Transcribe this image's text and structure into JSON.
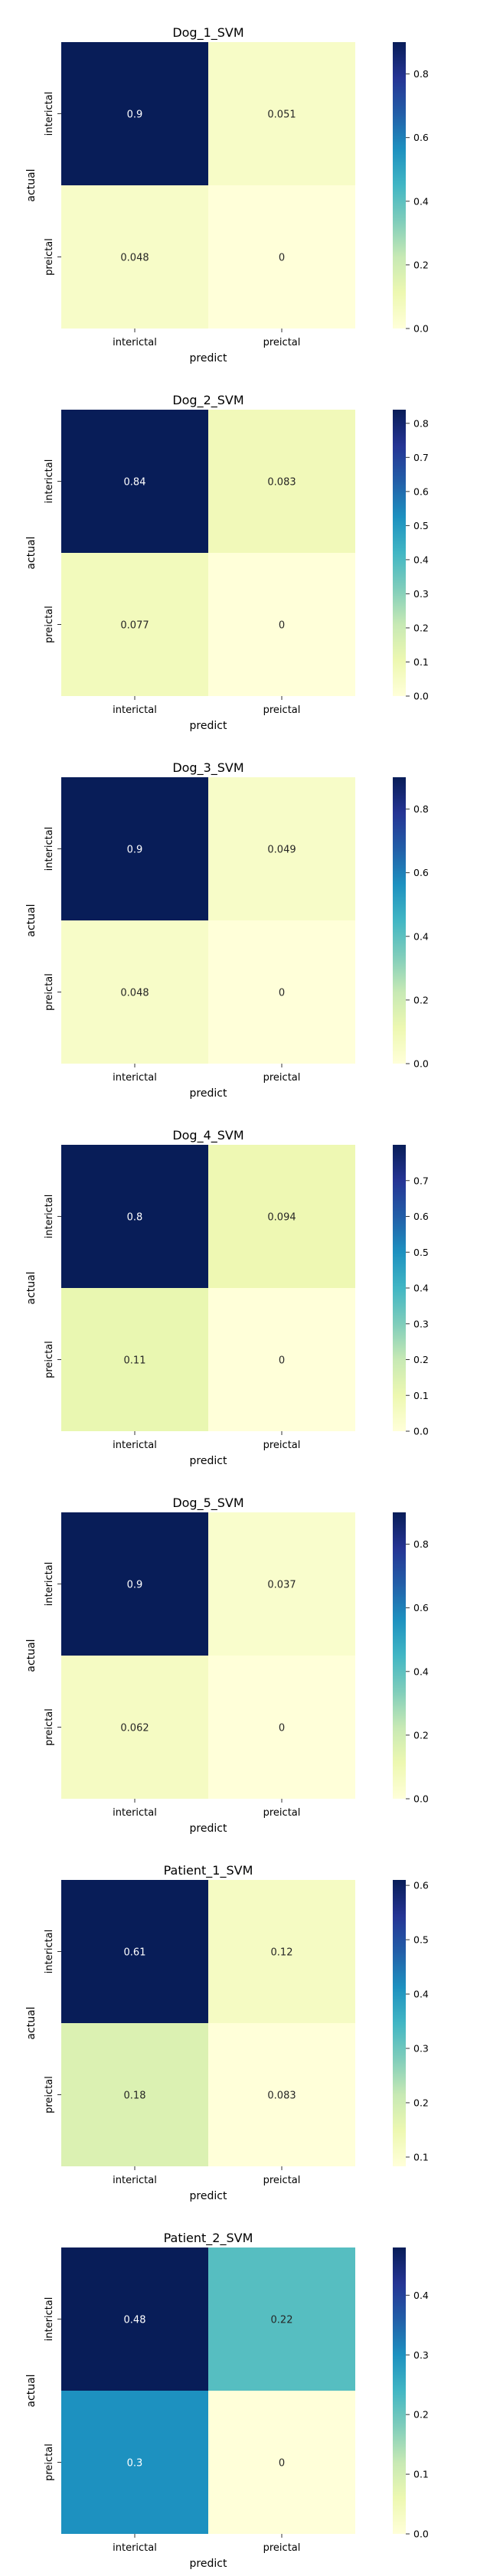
{
  "chart_data": [
    {
      "type": "heatmap",
      "title": "Dog_1_SVM",
      "xlabel": "predict",
      "ylabel": "actual",
      "x_categories": [
        "interictal",
        "preictal"
      ],
      "y_categories": [
        "interictal",
        "preictal"
      ],
      "values": [
        [
          0.9,
          0.051
        ],
        [
          0.048,
          0
        ]
      ],
      "value_labels": [
        [
          "0.9",
          "0.051"
        ],
        [
          "0.048",
          "0"
        ]
      ],
      "colorbar": {
        "min": 0.0,
        "max": 0.9,
        "ticks": [
          "0.0",
          "0.2",
          "0.4",
          "0.6",
          "0.8"
        ]
      }
    },
    {
      "type": "heatmap",
      "title": "Dog_2_SVM",
      "xlabel": "predict",
      "ylabel": "actual",
      "x_categories": [
        "interictal",
        "preictal"
      ],
      "y_categories": [
        "interictal",
        "preictal"
      ],
      "values": [
        [
          0.84,
          0.083
        ],
        [
          0.077,
          0
        ]
      ],
      "value_labels": [
        [
          "0.84",
          "0.083"
        ],
        [
          "0.077",
          "0"
        ]
      ],
      "colorbar": {
        "min": 0.0,
        "max": 0.84,
        "ticks": [
          "0.0",
          "0.1",
          "0.2",
          "0.3",
          "0.4",
          "0.5",
          "0.6",
          "0.7",
          "0.8"
        ]
      }
    },
    {
      "type": "heatmap",
      "title": "Dog_3_SVM",
      "xlabel": "predict",
      "ylabel": "actual",
      "x_categories": [
        "interictal",
        "preictal"
      ],
      "y_categories": [
        "interictal",
        "preictal"
      ],
      "values": [
        [
          0.9,
          0.049
        ],
        [
          0.048,
          0
        ]
      ],
      "value_labels": [
        [
          "0.9",
          "0.049"
        ],
        [
          "0.048",
          "0"
        ]
      ],
      "colorbar": {
        "min": 0.0,
        "max": 0.9,
        "ticks": [
          "0.0",
          "0.2",
          "0.4",
          "0.6",
          "0.8"
        ]
      }
    },
    {
      "type": "heatmap",
      "title": "Dog_4_SVM",
      "xlabel": "predict",
      "ylabel": "actual",
      "x_categories": [
        "interictal",
        "preictal"
      ],
      "y_categories": [
        "interictal",
        "preictal"
      ],
      "values": [
        [
          0.8,
          0.094
        ],
        [
          0.11,
          0
        ]
      ],
      "value_labels": [
        [
          "0.8",
          "0.094"
        ],
        [
          "0.11",
          "0"
        ]
      ],
      "colorbar": {
        "min": 0.0,
        "max": 0.8,
        "ticks": [
          "0.0",
          "0.1",
          "0.2",
          "0.3",
          "0.4",
          "0.5",
          "0.6",
          "0.7"
        ]
      }
    },
    {
      "type": "heatmap",
      "title": "Dog_5_SVM",
      "xlabel": "predict",
      "ylabel": "actual",
      "x_categories": [
        "interictal",
        "preictal"
      ],
      "y_categories": [
        "interictal",
        "preictal"
      ],
      "values": [
        [
          0.9,
          0.037
        ],
        [
          0.062,
          0
        ]
      ],
      "value_labels": [
        [
          "0.9",
          "0.037"
        ],
        [
          "0.062",
          "0"
        ]
      ],
      "colorbar": {
        "min": 0.0,
        "max": 0.9,
        "ticks": [
          "0.0",
          "0.2",
          "0.4",
          "0.6",
          "0.8"
        ]
      }
    },
    {
      "type": "heatmap",
      "title": "Patient_1_SVM",
      "xlabel": "predict",
      "ylabel": "actual",
      "x_categories": [
        "interictal",
        "preictal"
      ],
      "y_categories": [
        "interictal",
        "preictal"
      ],
      "values": [
        [
          0.61,
          0.12
        ],
        [
          0.18,
          0.083
        ]
      ],
      "value_labels": [
        [
          "0.61",
          "0.12"
        ],
        [
          "0.18",
          "0.083"
        ]
      ],
      "colorbar": {
        "min": 0.083,
        "max": 0.61,
        "ticks": [
          "0.1",
          "0.2",
          "0.3",
          "0.4",
          "0.5",
          "0.6"
        ]
      }
    },
    {
      "type": "heatmap",
      "title": "Patient_2_SVM",
      "xlabel": "predict",
      "ylabel": "actual",
      "x_categories": [
        "interictal",
        "preictal"
      ],
      "y_categories": [
        "interictal",
        "preictal"
      ],
      "values": [
        [
          0.48,
          0.22
        ],
        [
          0.3,
          0
        ]
      ],
      "value_labels": [
        [
          "0.48",
          "0.22"
        ],
        [
          "0.3",
          "0"
        ]
      ],
      "colorbar": {
        "min": 0.0,
        "max": 0.48,
        "ticks": [
          "0.0",
          "0.1",
          "0.2",
          "0.3",
          "0.4"
        ]
      }
    }
  ]
}
